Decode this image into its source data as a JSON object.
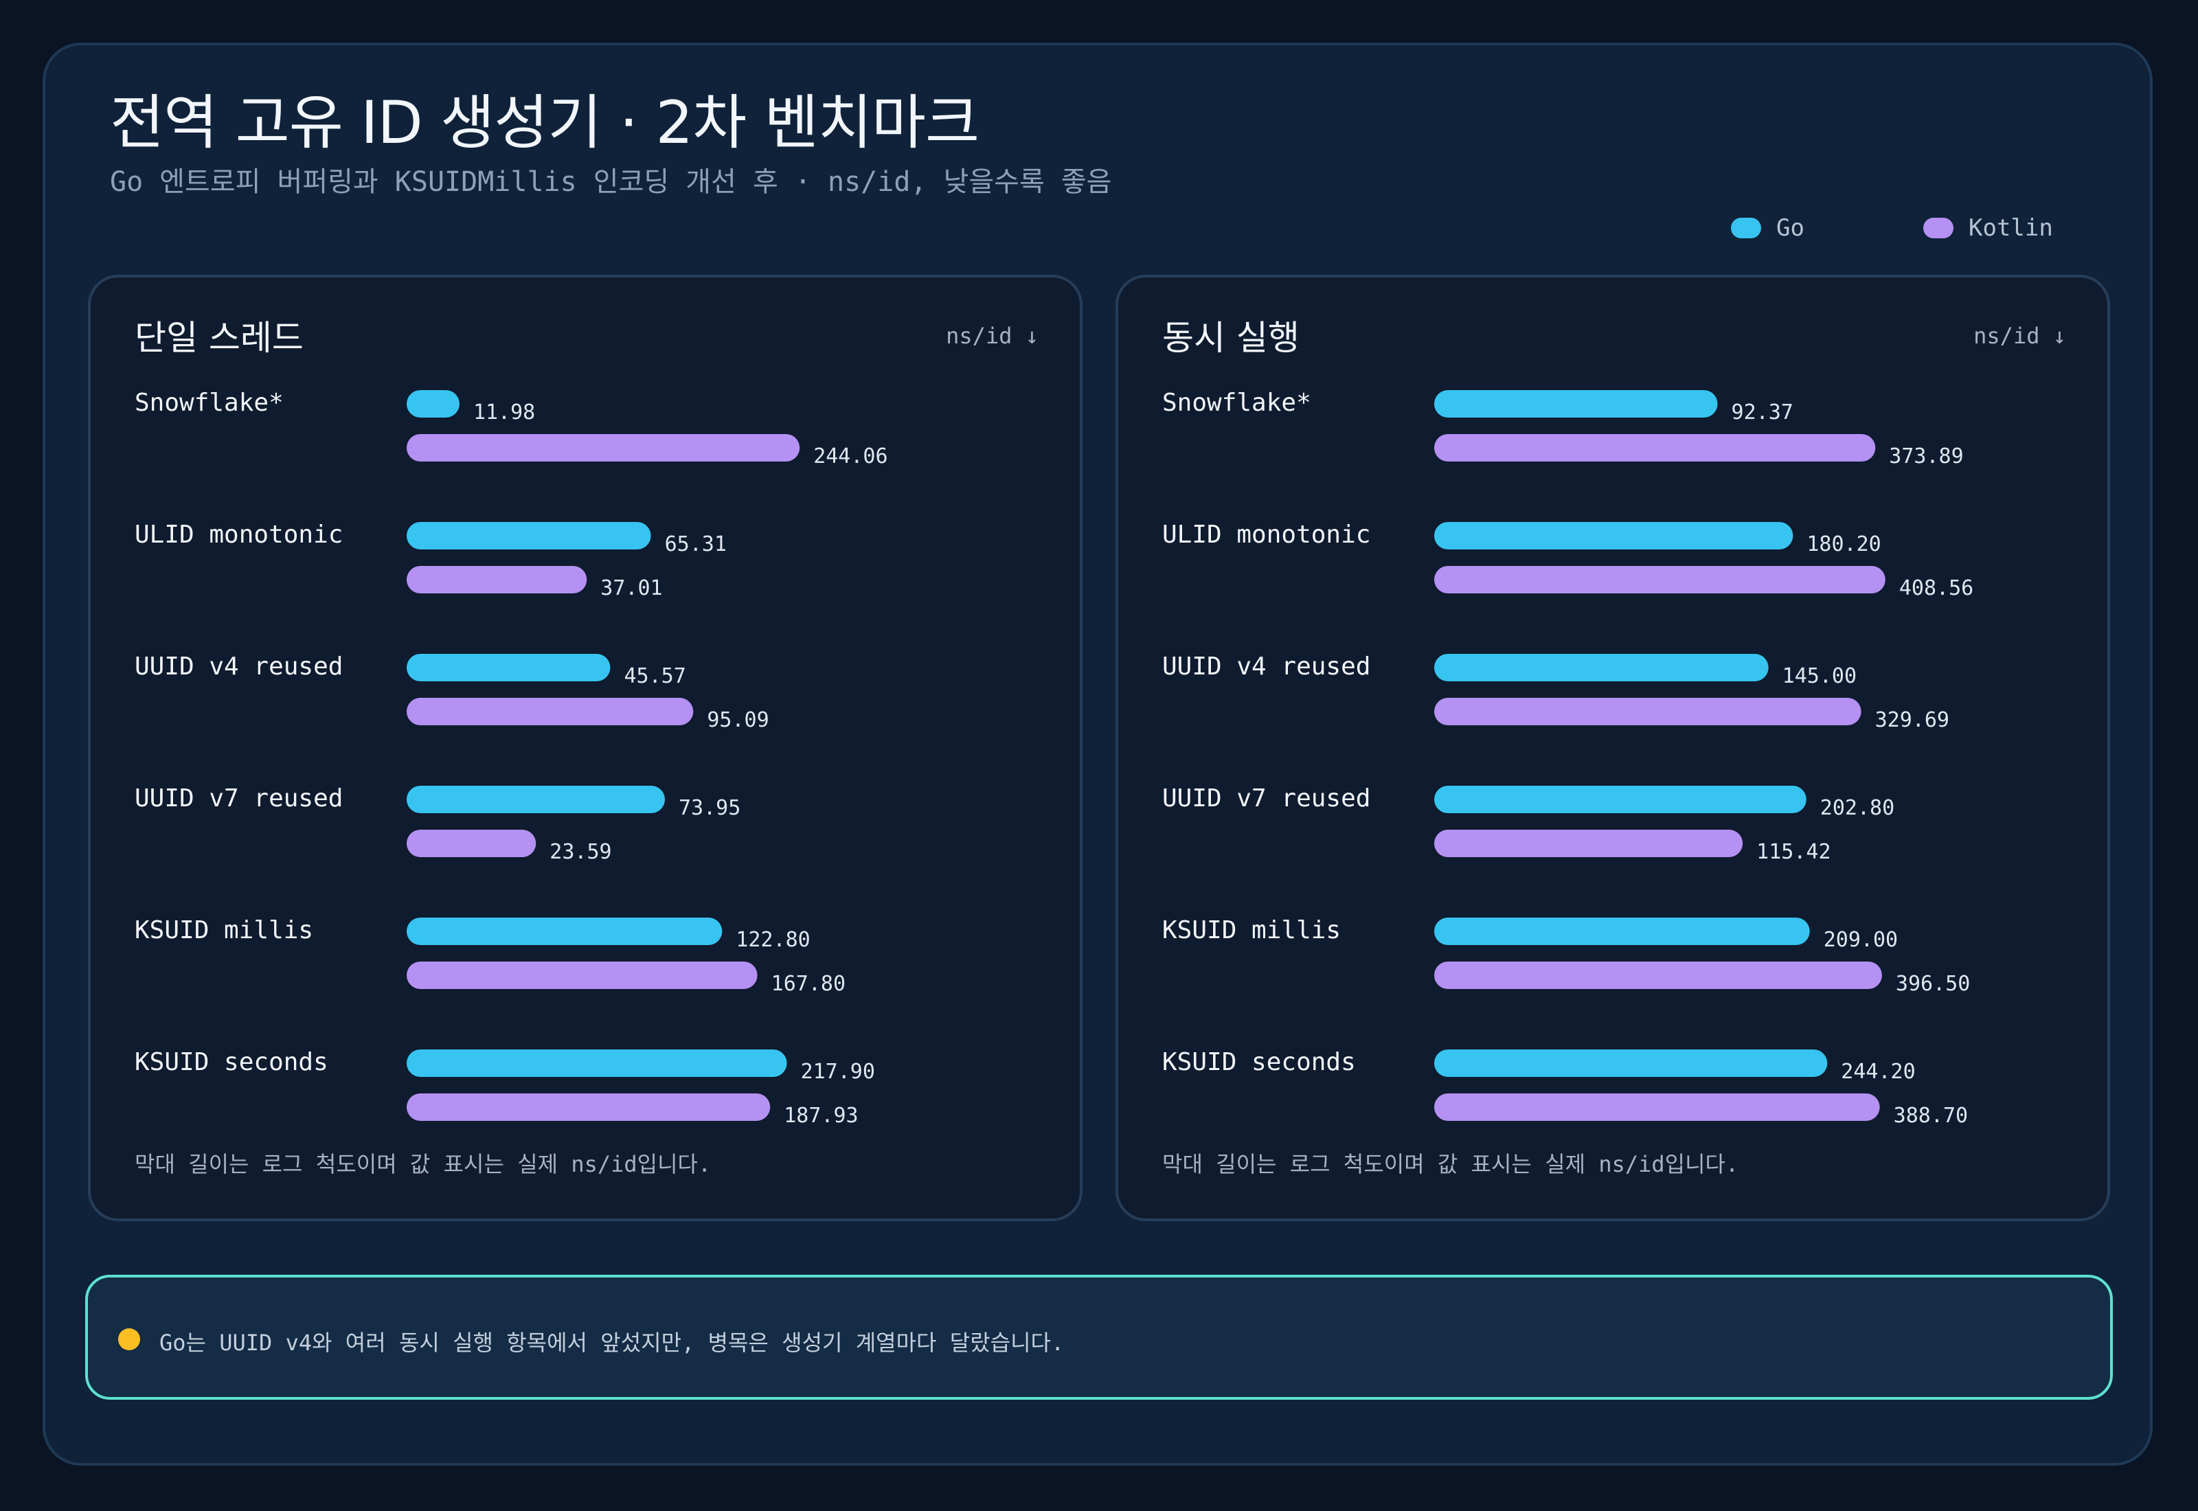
{
  "title": "전역 고유 ID 생성기 · 2차 벤치마크",
  "subtitle": "Go 엔트로피 버퍼링과 KSUIDMillis 인코딩 개선 후 · ns/id, 낮을수록 좋음",
  "legend": [
    {
      "label": "Go",
      "color": "#38c4f0"
    },
    {
      "label": "Kotlin",
      "color": "#b491f2"
    }
  ],
  "insight": "Go는 UUID v4와 여러 동시 실행 항목에서 앞섰지만, 병목은 생성기 계열마다 달랐습니다.",
  "insight_color": "#fbbf24",
  "chart_data": [
    {
      "type": "bar",
      "orientation": "horizontal",
      "title": "단일 스레드",
      "unit_label": "ns/id ↓",
      "scale": "log",
      "note": "막대 길이는 로그 척도이며 값 표시는 실제 ns/id입니다.",
      "categories": [
        "Snowflake*",
        "ULID monotonic",
        "UUID v4 reused",
        "UUID v7 reused",
        "KSUID millis",
        "KSUID seconds"
      ],
      "series": [
        {
          "name": "Go",
          "color": "#38c4f0",
          "values": [
            11.98,
            65.31,
            45.57,
            73.95,
            122.8,
            217.9
          ]
        },
        {
          "name": "Kotlin",
          "color": "#b491f2",
          "values": [
            244.06,
            37.01,
            95.09,
            23.59,
            167.8,
            187.93
          ]
        }
      ]
    },
    {
      "type": "bar",
      "orientation": "horizontal",
      "title": "동시 실행",
      "unit_label": "ns/id ↓",
      "scale": "log",
      "note": "막대 길이는 로그 척도이며 값 표시는 실제 ns/id입니다.",
      "categories": [
        "Snowflake*",
        "ULID monotonic",
        "UUID v4 reused",
        "UUID v7 reused",
        "KSUID millis",
        "KSUID seconds"
      ],
      "series": [
        {
          "name": "Go",
          "color": "#38c4f0",
          "values": [
            92.37,
            180.2,
            145.0,
            202.8,
            209.0,
            244.2
          ]
        },
        {
          "name": "Kotlin",
          "color": "#b491f2",
          "values": [
            373.89,
            408.56,
            329.69,
            115.42,
            396.5,
            388.7
          ]
        }
      ]
    }
  ]
}
